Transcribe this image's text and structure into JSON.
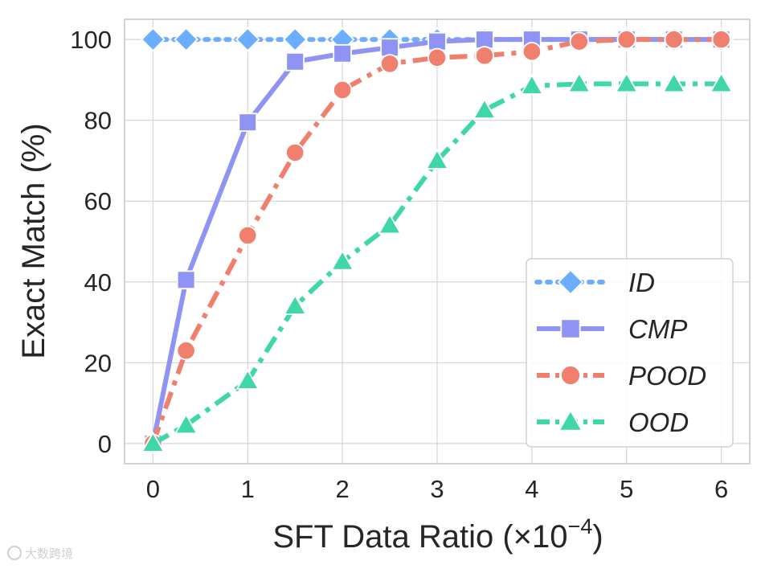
{
  "chart_data": {
    "type": "line",
    "title": "",
    "xlabel_main": "SFT Data Ratio (×10",
    "xlabel_exp": "−4",
    "xlabel_close": ")",
    "ylabel": "Exact Match (%)",
    "xlim": [
      -0.3,
      6.3
    ],
    "ylim": [
      -5,
      105
    ],
    "xticks": [
      0,
      1,
      2,
      3,
      4,
      5,
      6
    ],
    "xtick_labels": [
      "0",
      "1",
      "2",
      "3",
      "4",
      "5",
      "6"
    ],
    "yticks": [
      0,
      20,
      40,
      60,
      80,
      100
    ],
    "ytick_labels": [
      "0",
      "20",
      "40",
      "60",
      "80",
      "100"
    ],
    "grid": true,
    "legend_position": "lower-right",
    "series": [
      {
        "name": "ID",
        "color": "#6baeff",
        "marker": "diamond",
        "dash": "dotted",
        "x": [
          0,
          0.35,
          1,
          1.5,
          2,
          2.5,
          3,
          3.5,
          4,
          4.5,
          5,
          5.5,
          6
        ],
        "y": [
          100,
          100,
          100,
          100,
          100,
          100,
          100,
          100,
          100,
          100,
          100,
          100,
          100
        ]
      },
      {
        "name": "CMP",
        "color": "#8f94f4",
        "marker": "square",
        "dash": "solid",
        "x": [
          0,
          0.35,
          1,
          1.5,
          2,
          2.5,
          3,
          3.5,
          4,
          4.5,
          5,
          5.5,
          6
        ],
        "y": [
          0,
          40.5,
          79.5,
          94.5,
          96.5,
          98,
          99.5,
          100,
          100,
          100,
          100,
          100,
          100
        ]
      },
      {
        "name": "POOD",
        "color": "#f07f6e",
        "marker": "circle",
        "dash": "dashdot",
        "x": [
          0,
          0.35,
          1,
          1.5,
          2,
          2.5,
          3,
          3.5,
          4,
          4.5,
          5,
          5.5,
          6
        ],
        "y": [
          0,
          23,
          51.5,
          72,
          87.5,
          94,
          95.5,
          96,
          97,
          99.5,
          100,
          100,
          100
        ]
      },
      {
        "name": "OOD",
        "color": "#3fd6a8",
        "marker": "triangle",
        "dash": "dashdot",
        "x": [
          0,
          0.35,
          1,
          1.5,
          2,
          2.5,
          3,
          3.5,
          4,
          4.5,
          5,
          5.5,
          6
        ],
        "y": [
          0,
          4.5,
          15.5,
          34,
          45,
          54,
          70,
          82.5,
          88.5,
          89,
          89,
          89,
          89
        ]
      }
    ]
  },
  "watermark": "大数跨境"
}
